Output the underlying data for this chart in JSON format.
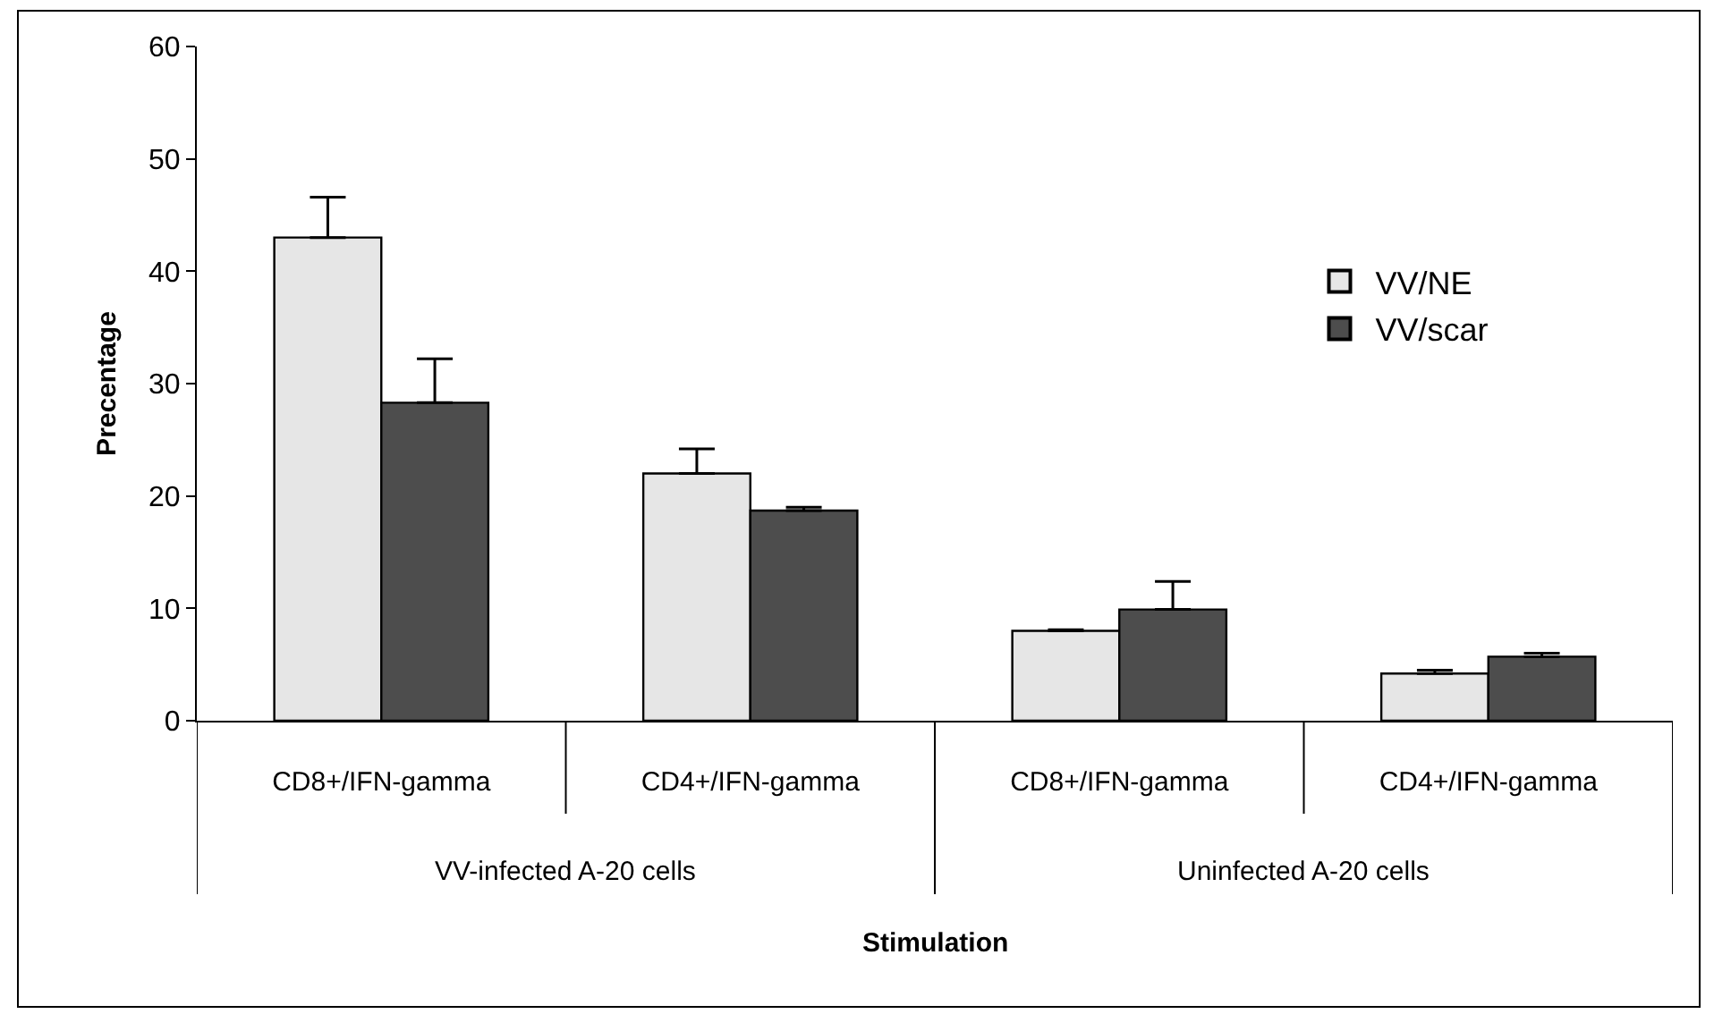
{
  "chart_data": {
    "type": "bar",
    "xlabel": "Stimulation",
    "ylabel": "Precentage",
    "categories": [
      "CD8+/IFN-gamma",
      "CD4+/IFN-gamma",
      "CD8+/IFN-gamma",
      "CD4+/IFN-gamma"
    ],
    "series": [
      {
        "name": "VV/NE",
        "color": "#e6e6e6",
        "values": [
          43,
          22,
          8,
          4.2
        ],
        "errors": [
          [
            43,
            46.6
          ],
          [
            22,
            24.2
          ],
          [
            8,
            8.1
          ],
          [
            4.2,
            4.5
          ]
        ]
      },
      {
        "name": "VV/scar",
        "color": "#4d4d4d",
        "values": [
          28.3,
          18.7,
          9.9,
          5.7
        ],
        "errors": [
          [
            28.3,
            32.2
          ],
          [
            18.7,
            19
          ],
          [
            9.9,
            12.4
          ],
          [
            5.7,
            6
          ]
        ]
      }
    ],
    "annotations": [
      "VV-infected A-20 cells",
      "Uninfected A-20 cells"
    ],
    "ylim": [
      0,
      60
    ],
    "yticks": [
      0,
      10,
      20,
      30,
      40,
      50,
      60
    ],
    "legend": "right"
  }
}
